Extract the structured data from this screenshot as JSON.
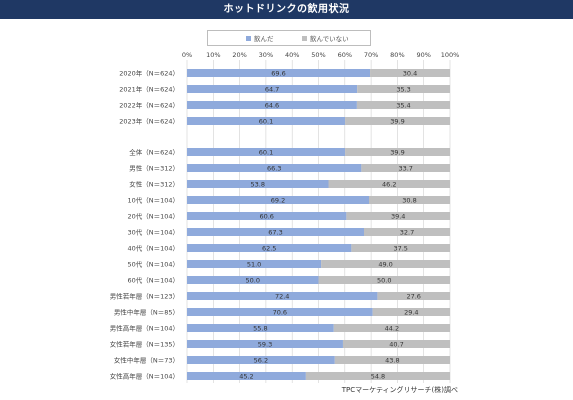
{
  "title": "ホットドリンクの飲用状況",
  "source": "TPCマーケティングリサーチ(株)調べ",
  "colors": {
    "title_bg": "#1f3864",
    "drink": "#8faadc",
    "not_drink": "#bfbfbf",
    "grid": "#d0d0d0",
    "text": "#444444"
  },
  "chart_data": {
    "type": "bar",
    "orientation": "horizontal",
    "stacked": true,
    "percent_axis": true,
    "xlim": [
      0,
      100
    ],
    "x_ticks": [
      "0%",
      "10%",
      "20%",
      "30%",
      "40%",
      "50%",
      "60%",
      "70%",
      "80%",
      "90%",
      "100%"
    ],
    "legend_position": "top",
    "categories": [
      "2020年（N＝624）",
      "2021年（N＝624）",
      "2022年（N＝624）",
      "2023年（N＝624）",
      "全体（N＝624）",
      "男性（N＝312）",
      "女性（N＝312）",
      "10代（N＝104）",
      "20代（N＝104）",
      "30代（N＝104）",
      "40代（N＝104）",
      "50代（N＝104）",
      "60代（N＝104）",
      "男性若年層（N＝123）",
      "男性中年層（N＝85）",
      "男性高年層（N＝104）",
      "女性若年層（N＝135）",
      "女性中年層（N＝73）",
      "女性高年層（N＝104）"
    ],
    "group_break_after_index": 3,
    "series": [
      {
        "name": "飲んだ",
        "color": "#8faadc",
        "values": [
          69.6,
          64.7,
          64.6,
          60.1,
          60.1,
          66.3,
          53.8,
          69.2,
          60.6,
          67.3,
          62.5,
          51.0,
          50.0,
          72.4,
          70.6,
          55.8,
          59.3,
          56.2,
          45.2
        ]
      },
      {
        "name": "飲んでいない",
        "color": "#bfbfbf",
        "values": [
          30.4,
          35.3,
          35.4,
          39.9,
          39.9,
          33.7,
          46.2,
          30.8,
          39.4,
          32.7,
          37.5,
          49.0,
          50.0,
          27.6,
          29.4,
          44.2,
          40.7,
          43.8,
          54.8
        ]
      }
    ]
  }
}
